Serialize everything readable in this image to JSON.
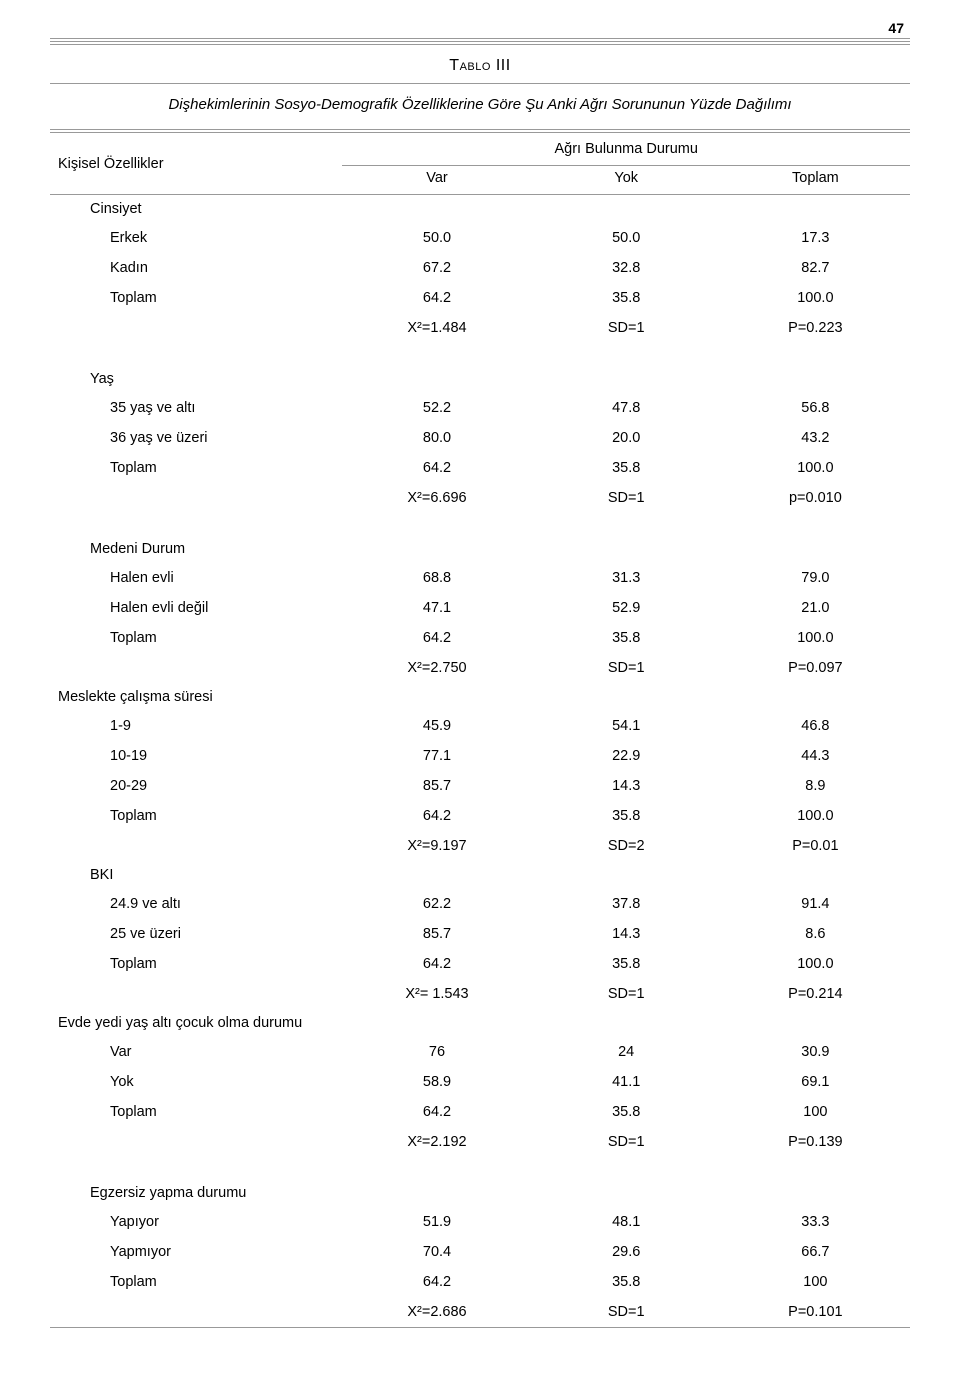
{
  "page_number": "47",
  "table_label": "Tablo III",
  "subtitle": "Dişhekimlerinin Sosyo-Demografik Özelliklerine Göre Şu Anki Ağrı Sorununun Yüzde Dağılımı",
  "column_group_left": "Kişisel Özellikler",
  "column_group_right": "Ağrı Bulunma Durumu",
  "columns": {
    "var": "Var",
    "yok": "Yok",
    "toplam": "Toplam"
  },
  "sections": [
    {
      "title": "Cinsiyet",
      "gap_before": false,
      "rows": [
        {
          "label": "Erkek",
          "var": "50.0",
          "yok": "50.0",
          "toplam": "17.3"
        },
        {
          "label": "Kadın",
          "var": "67.2",
          "yok": "32.8",
          "toplam": "82.7"
        },
        {
          "label": "Toplam",
          "var": "64.2",
          "yok": "35.8",
          "toplam": "100.0"
        }
      ],
      "stat": {
        "var": "X²=1.484",
        "yok": "SD=1",
        "toplam": "P=0.223"
      }
    },
    {
      "title": "Yaş",
      "gap_before": true,
      "rows": [
        {
          "label": "35 yaş ve altı",
          "var": "52.2",
          "yok": "47.8",
          "toplam": "56.8"
        },
        {
          "label": "36 yaş ve üzeri",
          "var": "80.0",
          "yok": "20.0",
          "toplam": "43.2"
        },
        {
          "label": "Toplam",
          "var": "64.2",
          "yok": "35.8",
          "toplam": "100.0"
        }
      ],
      "stat": {
        "var": "X²=6.696",
        "yok": "SD=1",
        "toplam": "p=0.010"
      }
    },
    {
      "title": "Medeni Durum",
      "gap_before": true,
      "rows": [
        {
          "label": "Halen evli",
          "var": "68.8",
          "yok": "31.3",
          "toplam": "79.0"
        },
        {
          "label": "Halen evli değil",
          "var": "47.1",
          "yok": "52.9",
          "toplam": "21.0"
        },
        {
          "label": "Toplam",
          "var": "64.2",
          "yok": "35.8",
          "toplam": "100.0"
        }
      ],
      "stat": {
        "var": "X²=2.750",
        "yok": "SD=1",
        "toplam": "P=0.097"
      }
    },
    {
      "title": "Meslekte çalışma süresi",
      "gap_before": false,
      "no_indent": true,
      "rows": [
        {
          "label": "1-9",
          "var": "45.9",
          "yok": "54.1",
          "toplam": "46.8"
        },
        {
          "label": "10-19",
          "var": "77.1",
          "yok": "22.9",
          "toplam": "44.3"
        },
        {
          "label": "20-29",
          "var": "85.7",
          "yok": "14.3",
          "toplam": "8.9"
        },
        {
          "label": "Toplam",
          "var": "64.2",
          "yok": "35.8",
          "toplam": "100.0"
        }
      ],
      "stat": {
        "var": "X²=9.197",
        "yok": "SD=2",
        "toplam": "P=0.01"
      }
    },
    {
      "title": "BKI",
      "gap_before": false,
      "rows": [
        {
          "label": "24.9 ve altı",
          "var": "62.2",
          "yok": "37.8",
          "toplam": "91.4"
        },
        {
          "label": "25 ve üzeri",
          "var": "85.7",
          "yok": "14.3",
          "toplam": "8.6"
        },
        {
          "label": "Toplam",
          "var": "64.2",
          "yok": "35.8",
          "toplam": "100.0"
        }
      ],
      "stat": {
        "var": "X²= 1.543",
        "yok": "SD=1",
        "toplam": "P=0.214"
      }
    },
    {
      "title": "Evde yedi yaş altı çocuk olma durumu",
      "gap_before": false,
      "no_indent": true,
      "rows": [
        {
          "label": "Var",
          "var": "76",
          "yok": "24",
          "toplam": "30.9"
        },
        {
          "label": "Yok",
          "var": "58.9",
          "yok": "41.1",
          "toplam": "69.1"
        },
        {
          "label": "Toplam",
          "var": "64.2",
          "yok": "35.8",
          "toplam": "100"
        }
      ],
      "stat": {
        "var": "X²=2.192",
        "yok": "SD=1",
        "toplam": "P=0.139"
      }
    },
    {
      "title": "Egzersiz yapma durumu",
      "gap_before": true,
      "rows": [
        {
          "label": "Yapıyor",
          "var": "51.9",
          "yok": "48.1",
          "toplam": "33.3"
        },
        {
          "label": "Yapmıyor",
          "var": "70.4",
          "yok": "29.6",
          "toplam": "66.7"
        },
        {
          "label": "Toplam",
          "var": "64.2",
          "yok": "35.8",
          "toplam": "100"
        }
      ],
      "stat": {
        "var": "X²=2.686",
        "yok": "SD=1",
        "toplam": "P=0.101"
      },
      "last": true
    }
  ]
}
